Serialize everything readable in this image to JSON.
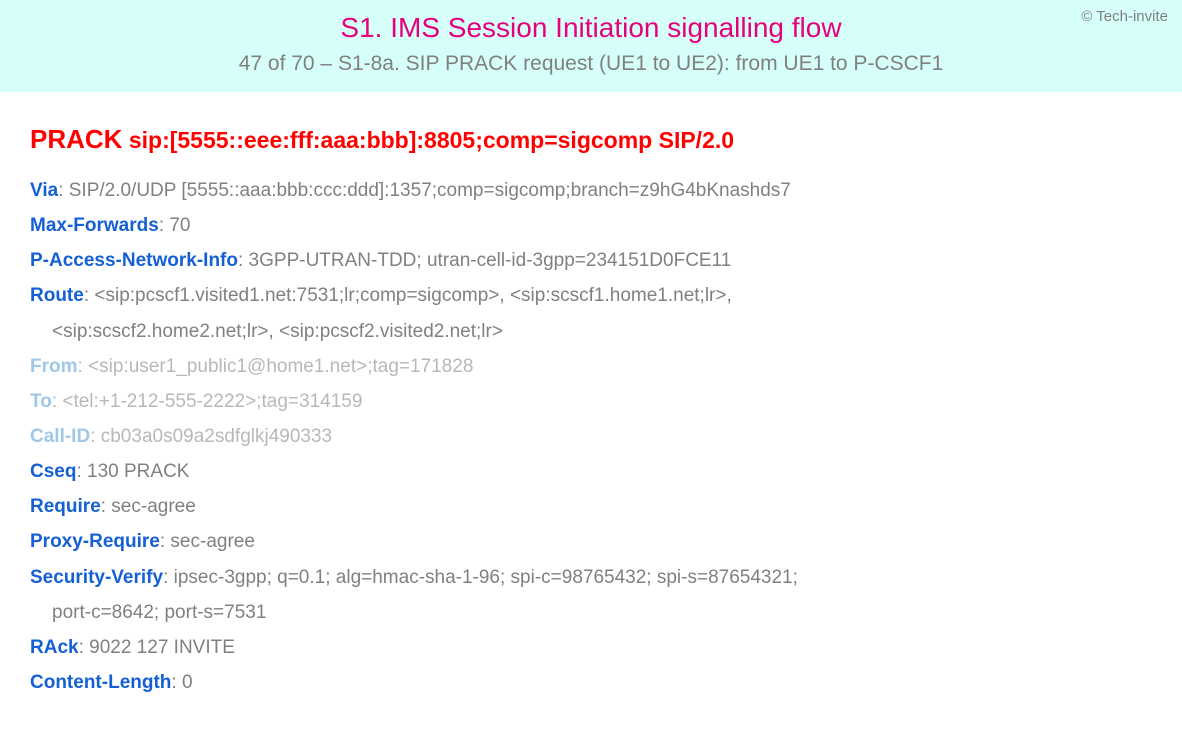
{
  "copyright": "© Tech-invite",
  "title": "S1. IMS Session Initiation signalling flow",
  "subtitle": "47 of 70 – S1-8a. SIP PRACK request (UE1 to UE2): from UE1 to P-CSCF1",
  "request": {
    "method": "PRACK",
    "uri": "sip:[5555::eee:fff:aaa:bbb]:8805;comp=sigcomp SIP/2.0"
  },
  "headers": [
    {
      "name": "Via",
      "value": ": SIP/2.0/UDP [5555::aaa:bbb:ccc:ddd]:1357;comp=sigcomp;branch=z9hG4bKnashds7",
      "dim": false
    },
    {
      "name": "Max-Forwards",
      "value": ": 70",
      "dim": false
    },
    {
      "name": "P-Access-Network-Info",
      "value": ": 3GPP-UTRAN-TDD; utran-cell-id-3gpp=234151D0FCE11",
      "dim": false
    },
    {
      "name": "Route",
      "value": ": <sip:pcscf1.visited1.net:7531;lr;comp=sigcomp>, <sip:scscf1.home1.net;lr>,",
      "dim": false
    },
    {
      "name": "",
      "value": "<sip:scscf2.home2.net;lr>, <sip:pcscf2.visited2.net;lr>",
      "dim": false,
      "indent": true
    },
    {
      "name": "From",
      "value": ": <sip:user1_public1@home1.net>;tag=171828",
      "dim": true
    },
    {
      "name": "To",
      "value": ": <tel:+1-212-555-2222>;tag=314159",
      "dim": true
    },
    {
      "name": "Call-ID",
      "value": ": cb03a0s09a2sdfglkj490333",
      "dim": true
    },
    {
      "name": "Cseq",
      "value": ": 130 PRACK",
      "dim": false
    },
    {
      "name": "Require",
      "value": ": sec-agree",
      "dim": false
    },
    {
      "name": "Proxy-Require",
      "value": ": sec-agree",
      "dim": false
    },
    {
      "name": "Security-Verify",
      "value": ": ipsec-3gpp; q=0.1; alg=hmac-sha-1-96; spi-c=98765432; spi-s=87654321;",
      "dim": false
    },
    {
      "name": "",
      "value": "port-c=8642; port-s=7531",
      "dim": false,
      "indent": true
    },
    {
      "name": "RAck",
      "value": ": 9022 127 INVITE",
      "dim": false
    },
    {
      "name": "Content-Length",
      "value": ": 0",
      "dim": false
    }
  ],
  "colors": {
    "header_bg": "#d6fff9",
    "title": "#e6007e",
    "subtitle": "#808080",
    "request": "#ff0000",
    "header_name": "#1560d4",
    "header_name_dim": "#9fc8e8",
    "value": "#808080",
    "value_dim": "#b8b8b8"
  },
  "typography": {
    "title_size": 28,
    "subtitle_size": 21,
    "request_size": 23,
    "body_size": 19
  }
}
